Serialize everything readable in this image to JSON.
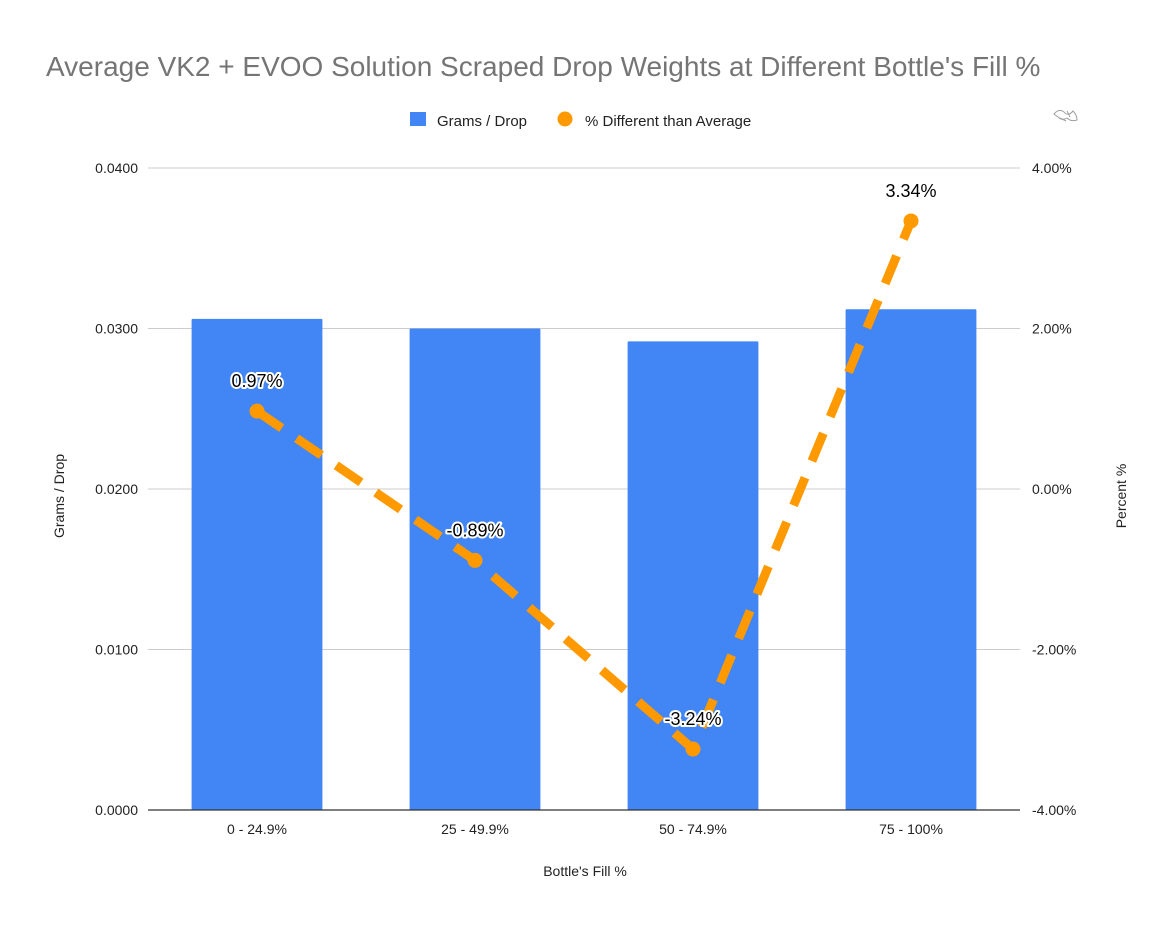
{
  "chart_data": {
    "type": "bar",
    "title": "Average VK2 + EVOO Solution Scraped Drop Weights at Different Bottle's Fill %",
    "xlabel": "Bottle's Fill %",
    "ylabel": "Grams / Drop",
    "y2label": "Percent %",
    "categories": [
      "0 - 24.9%",
      "25 - 49.9%",
      "50 - 74.9%",
      "75 - 100%"
    ],
    "ylim": [
      0,
      0.04
    ],
    "yticks": [
      "0.0000",
      "0.0100",
      "0.0200",
      "0.0300",
      "0.0400"
    ],
    "y2lim": [
      -4,
      4
    ],
    "y2ticks": [
      "-4.00%",
      "-2.00%",
      "0.00%",
      "2.00%",
      "4.00%"
    ],
    "grid": true,
    "legend_position": "top",
    "series": [
      {
        "name": "Grams / Drop",
        "kind": "bar",
        "axis": "left",
        "color": "#4285f4",
        "values": [
          0.0306,
          0.03,
          0.0292,
          0.0312
        ]
      },
      {
        "name": "% Different than Average",
        "kind": "line",
        "axis": "right",
        "style": "dashed",
        "marker": "circle",
        "color": "#ff9900",
        "values": [
          0.97,
          -0.89,
          -3.24,
          3.34
        ],
        "labels": [
          "0.97%",
          "-0.89%",
          "-3.24%",
          "3.34%"
        ]
      }
    ]
  }
}
